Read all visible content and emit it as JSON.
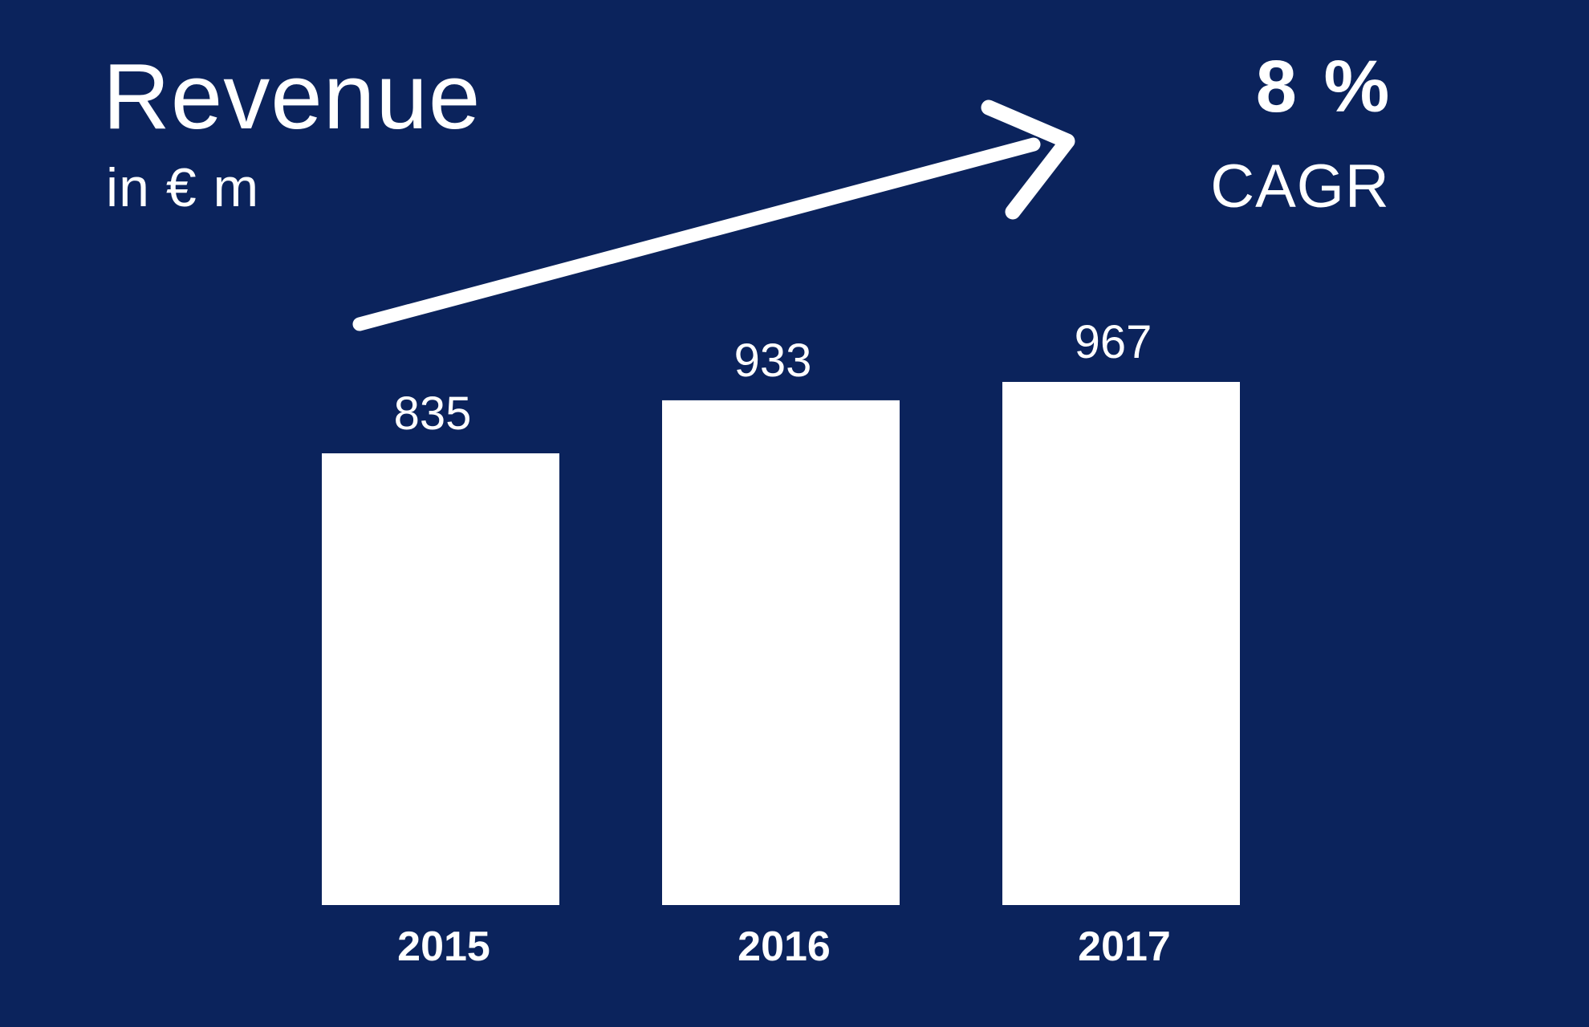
{
  "header": {
    "title": "Revenue",
    "subtitle": "in € m"
  },
  "cagr": {
    "value": "8 %",
    "label": "CAGR"
  },
  "colors": {
    "background": "#0b235c",
    "bar": "#ffffff",
    "text": "#ffffff"
  },
  "chart_data": {
    "type": "bar",
    "categories": [
      "2015",
      "2016",
      "2017"
    ],
    "values": [
      835,
      933,
      967
    ],
    "value_labels": [
      "835",
      "933",
      "967"
    ],
    "title": "Revenue",
    "ylabel": "in € m",
    "ylim": [
      0,
      1000
    ],
    "grid": false,
    "annotations": [
      {
        "type": "trend-arrow",
        "text": "8 % CAGR"
      }
    ]
  }
}
